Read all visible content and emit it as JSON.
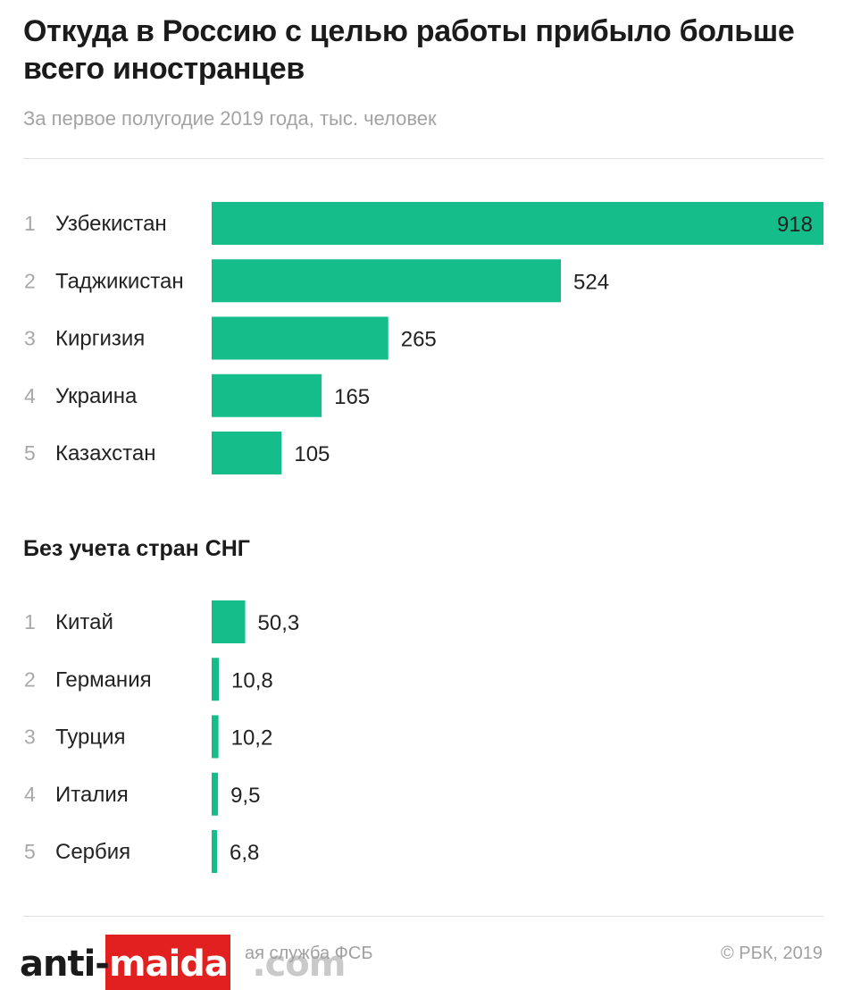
{
  "header": {
    "title": "Откуда в Россию с целью работы прибыло больше всего иностранцев",
    "subtitle": "За первое полугодие 2019 года, тыс. человек"
  },
  "chart_data": [
    {
      "type": "bar",
      "orientation": "horizontal",
      "ranks": [
        "1",
        "2",
        "3",
        "4",
        "5"
      ],
      "categories": [
        "Узбекистан",
        "Таджикистан",
        "Киргизия",
        "Украина",
        "Казахстан"
      ],
      "values": [
        918,
        524,
        265,
        165,
        105
      ],
      "value_labels": [
        "918",
        "524",
        "265",
        "165",
        "105"
      ],
      "xlim": [
        0,
        918
      ],
      "color": "#14bd8a"
    },
    {
      "type": "bar",
      "orientation": "horizontal",
      "title": "Без учета стран СНГ",
      "ranks": [
        "1",
        "2",
        "3",
        "4",
        "5"
      ],
      "categories": [
        "Китай",
        "Германия",
        "Турция",
        "Италия",
        "Сербия"
      ],
      "values": [
        50.3,
        10.8,
        10.2,
        9.5,
        6.8
      ],
      "value_labels": [
        "50,3",
        "10,8",
        "10,2",
        "9,5",
        "6,8"
      ],
      "xlim": [
        0,
        918
      ],
      "color": "#14bd8a"
    }
  ],
  "footer": {
    "source": "ая служба ФСБ",
    "copyright": "© РБК, 2019",
    "watermark": "anti-maidan.com"
  }
}
